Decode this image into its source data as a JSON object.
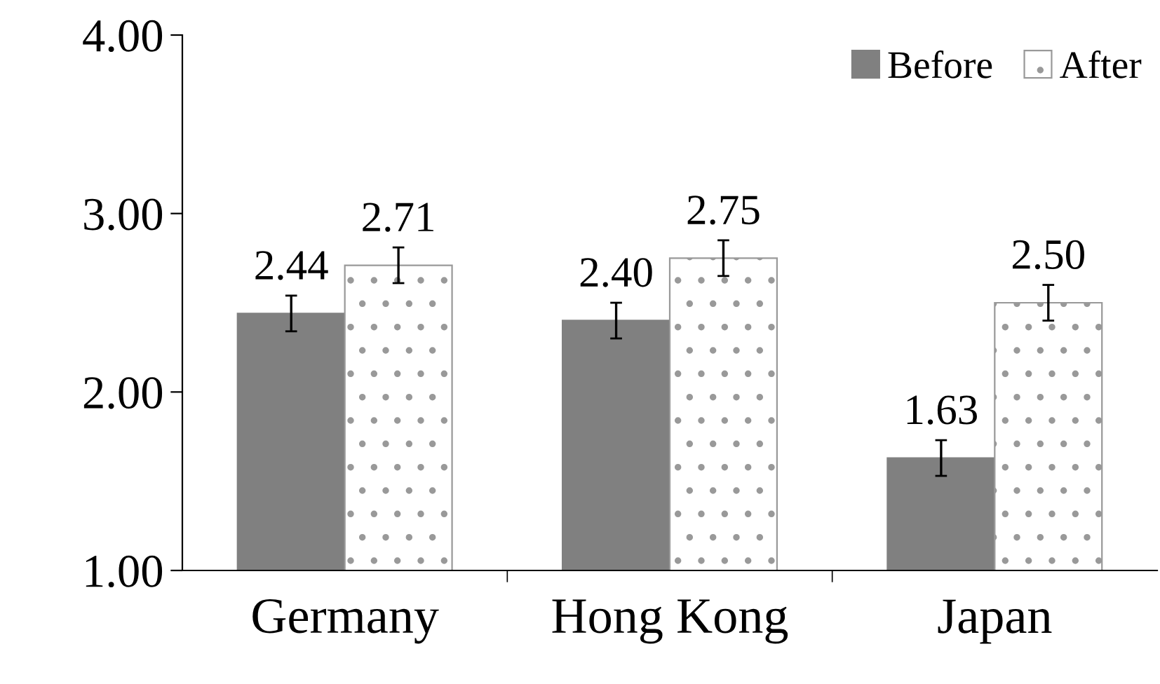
{
  "chart_data": {
    "type": "bar",
    "categories": [
      "Germany",
      "Hong Kong",
      "Japan"
    ],
    "series": [
      {
        "name": "Before",
        "color": "#808080",
        "values": [
          2.44,
          2.4,
          1.63
        ],
        "value_labels": [
          "2.44",
          "2.40",
          "1.63"
        ],
        "errors": [
          0.1,
          0.1,
          0.1
        ]
      },
      {
        "name": "After",
        "color": "#999999",
        "values": [
          2.71,
          2.75,
          2.5
        ],
        "value_labels": [
          "2.71",
          "2.75",
          "2.50"
        ],
        "errors": [
          0.1,
          0.1,
          0.1
        ]
      }
    ],
    "ylim": [
      1.0,
      4.0
    ],
    "yticks": [
      {
        "value": 1.0,
        "label": "1.00"
      },
      {
        "value": 2.0,
        "label": "2.00"
      },
      {
        "value": 3.0,
        "label": "3.00"
      },
      {
        "value": 4.0,
        "label": "4.00"
      }
    ],
    "legend": "top right",
    "grid": false
  }
}
